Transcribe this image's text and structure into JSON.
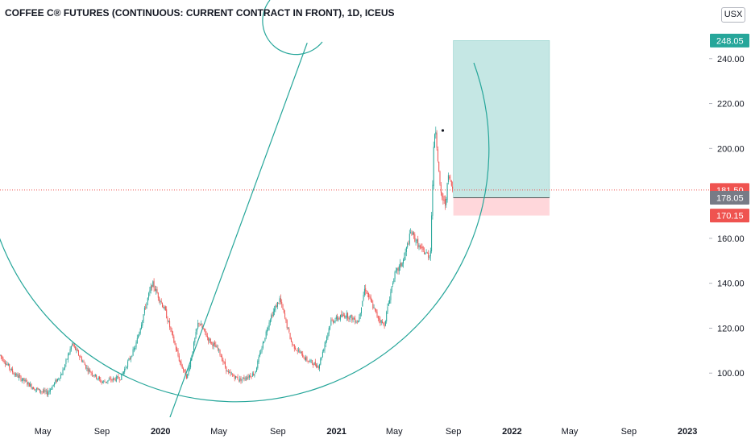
{
  "header": {
    "title": "COFFEE C® FUTURES (CONTINUOUS: CURRENT CONTRACT IN FRONT), 1D, ICEUS"
  },
  "currency_label": "USX",
  "price_badges": {
    "target": "248.05",
    "last": "181.50",
    "entry": "178.05",
    "stop": "170.15"
  },
  "colors": {
    "up": "#26a69a",
    "down": "#ef5350",
    "drawing": "#26a69a",
    "profit_zone": "#b2dfdb",
    "loss_zone": "#ffcdd2",
    "last_price_line": "#ef5350",
    "entry_badge": "#787b86"
  },
  "chart_data": {
    "type": "candlestick",
    "y_axis": {
      "ticks": [
        "100.00",
        "120.00",
        "140.00",
        "160.00",
        "200.00",
        "220.00",
        "240.00"
      ],
      "range": [
        80,
        260
      ],
      "position": "right"
    },
    "x_axis": {
      "ticks": [
        "May",
        "Sep",
        "2020",
        "May",
        "Sep",
        "2021",
        "May",
        "Sep",
        "2022",
        "May",
        "Sep",
        "2023"
      ],
      "range": [
        "2019-02-01",
        "2023-02-15"
      ]
    },
    "grid": false,
    "series_path": [
      [
        "2019-02-01",
        108
      ],
      [
        "2019-03-01",
        100
      ],
      [
        "2019-04-15",
        93
      ],
      [
        "2019-05-10",
        91
      ],
      [
        "2019-06-10",
        100
      ],
      [
        "2019-07-01",
        113
      ],
      [
        "2019-08-01",
        102
      ],
      [
        "2019-09-01",
        96
      ],
      [
        "2019-10-10",
        98
      ],
      [
        "2019-11-10",
        112
      ],
      [
        "2019-12-01",
        130
      ],
      [
        "2019-12-15",
        140
      ],
      [
        "2020-01-10",
        128
      ],
      [
        "2020-02-10",
        105
      ],
      [
        "2020-02-25",
        98
      ],
      [
        "2020-03-20",
        123
      ],
      [
        "2020-04-10",
        115
      ],
      [
        "2020-05-01",
        110
      ],
      [
        "2020-05-20",
        100
      ],
      [
        "2020-06-15",
        97
      ],
      [
        "2020-07-15",
        100
      ],
      [
        "2020-08-15",
        124
      ],
      [
        "2020-09-05",
        133
      ],
      [
        "2020-09-30",
        113
      ],
      [
        "2020-10-30",
        106
      ],
      [
        "2020-11-25",
        103
      ],
      [
        "2020-12-20",
        123
      ],
      [
        "2021-01-20",
        126
      ],
      [
        "2021-02-15",
        123
      ],
      [
        "2021-03-01",
        138
      ],
      [
        "2021-03-25",
        126
      ],
      [
        "2021-04-10",
        121
      ],
      [
        "2021-04-30",
        143
      ],
      [
        "2021-05-20",
        150
      ],
      [
        "2021-06-05",
        163
      ],
      [
        "2021-06-25",
        155
      ],
      [
        "2021-07-15",
        152
      ],
      [
        "2021-07-23",
        205
      ],
      [
        "2021-07-26",
        210
      ],
      [
        "2021-08-05",
        180
      ],
      [
        "2021-08-15",
        175
      ],
      [
        "2021-08-22",
        188
      ],
      [
        "2021-08-31",
        181.5
      ]
    ],
    "drawings": {
      "trend_line": {
        "start": [
          "2020-01-20",
          80
        ],
        "end": [
          "2020-11-01",
          247
        ]
      },
      "arc_large": {
        "description": "circle arc curving from upper left through lows up to right"
      },
      "arc_small": {
        "description": "small arc at top of chart"
      },
      "long_position": {
        "start_date": "2021-09-01",
        "end_date": "2022-03-20",
        "target": 248.05,
        "entry": 178.05,
        "stop": 170.15
      },
      "last_price": 181.5
    }
  }
}
